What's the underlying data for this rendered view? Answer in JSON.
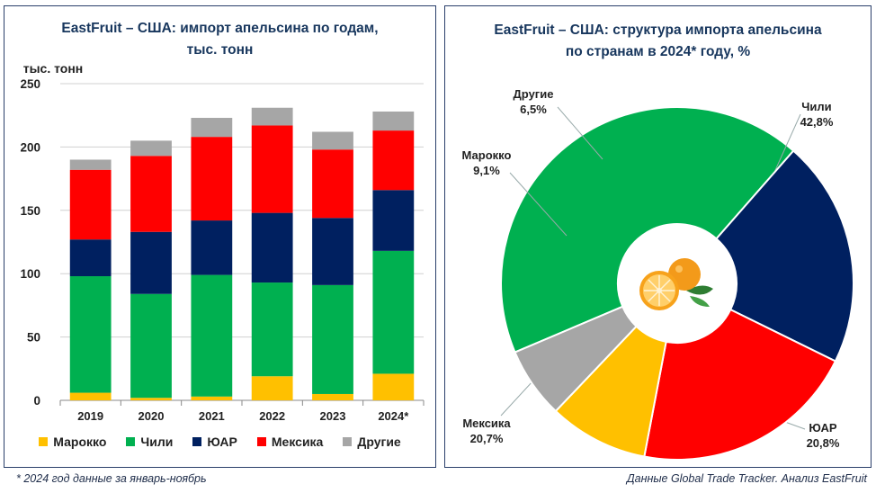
{
  "left_title_line1": "EastFruit –  США: импорт апельсина по годам,",
  "left_title_line2": "тыс. тонн",
  "right_title_line1": "EastFruit – США: структура импорта апельсина",
  "right_title_line2": "по странам в 2024* году, %",
  "footnote_left": "* 2024 год данные за январь-ноябрь",
  "footnote_right": "Данные Global Trade Tracker. Анализ EastFruit",
  "colors": {
    "Марокко": "#ffc000",
    "Чили": "#00b050",
    "ЮАР": "#002060",
    "Мексика": "#ff0000",
    "Другие": "#a6a6a6"
  },
  "chart_data": [
    {
      "type": "bar",
      "stacked": true,
      "title": "EastFruit –  США: импорт апельсина по годам, тыс. тонн",
      "ylabel": "тыс. тонн",
      "ylim": [
        0,
        250
      ],
      "yticks": [
        "0",
        "50",
        "100",
        "150",
        "200",
        "250"
      ],
      "grid": true,
      "legend": "bottom",
      "categories": [
        "2019",
        "2020",
        "2021",
        "2022",
        "2023",
        "2024*"
      ],
      "series": [
        {
          "name": "Марокко",
          "values": [
            6,
            2,
            3,
            19,
            5,
            21
          ]
        },
        {
          "name": "Чили",
          "values": [
            92,
            82,
            96,
            74,
            86,
            97
          ]
        },
        {
          "name": "ЮАР",
          "values": [
            29,
            49,
            43,
            55,
            53,
            48
          ]
        },
        {
          "name": "Мексика",
          "values": [
            55,
            60,
            66,
            69,
            54,
            47
          ]
        },
        {
          "name": "Другие",
          "values": [
            8,
            12,
            15,
            14,
            14,
            15
          ]
        }
      ]
    },
    {
      "type": "pie",
      "donut": true,
      "title": "EastFruit – США: структура импорта апельсина по странам в 2024* году, %",
      "slices": [
        {
          "name": "Чили",
          "value": 42.8,
          "label": "42,8%"
        },
        {
          "name": "ЮАР",
          "value": 20.8,
          "label": "20,8%"
        },
        {
          "name": "Мексика",
          "value": 20.7,
          "label": "20,7%"
        },
        {
          "name": "Марокко",
          "value": 9.1,
          "label": "9,1%"
        },
        {
          "name": "Другие",
          "value": 6.5,
          "label": "6,5%"
        }
      ]
    }
  ]
}
